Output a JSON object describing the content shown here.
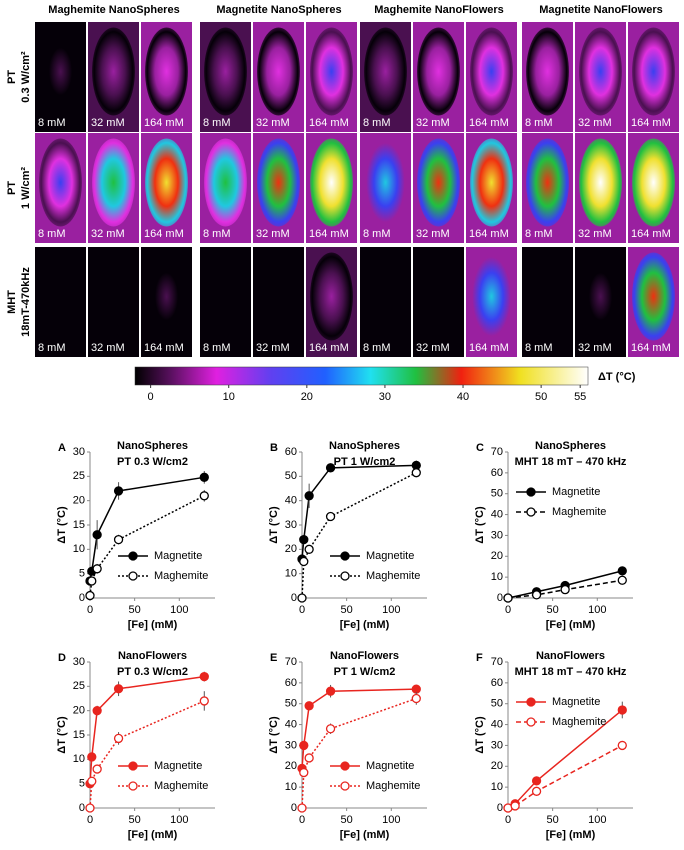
{
  "image_grid": {
    "column_titles": [
      "Maghemite NanoSpheres",
      "Magnetite NanoSpheres",
      "Maghemite NanoFlowers",
      "Magnetite NanoFlowers"
    ],
    "row_titles": [
      [
        "PT",
        "0.3 W/cm²"
      ],
      [
        "PT",
        "1 W/cm²"
      ],
      [
        "MHT",
        "18mT-470kHz"
      ]
    ],
    "concentrations": [
      "8 mM",
      "32 mM",
      "164 mM"
    ]
  },
  "colorbar": {
    "label": "ΔT (°C)",
    "lim": [
      -2,
      56
    ],
    "ticks": [
      0,
      10,
      20,
      30,
      40,
      50,
      55
    ]
  },
  "chart_data": [
    {
      "type": "line",
      "panel": "A",
      "title": "NanoSpheres",
      "subtitle": "PT 0.3 W/cm2",
      "xlabel": "[Fe] (mM)",
      "ylabel": "ΔT (°C)",
      "x": [
        0,
        2,
        8,
        32,
        128
      ],
      "xlim": [
        0,
        140
      ],
      "xticks": [
        0,
        50,
        100
      ],
      "ylim": [
        0,
        30
      ],
      "yticks": [
        0,
        5,
        10,
        15,
        20,
        25,
        30
      ],
      "legend": "lower right",
      "series": [
        {
          "name": "Magnetite",
          "color": "#000000",
          "line_style": "solid",
          "marker": "filled",
          "values": [
            3.5,
            5.5,
            13,
            22,
            24.8
          ],
          "errors": [
            0.5,
            0.5,
            3,
            1.8,
            1.3
          ]
        },
        {
          "name": "Maghemite",
          "color": "#000000",
          "line_style": "dotted",
          "marker": "open",
          "values": [
            0.5,
            3.5,
            6,
            12,
            21
          ],
          "errors": [
            0.3,
            0.5,
            1,
            1,
            1.2
          ]
        }
      ]
    },
    {
      "type": "line",
      "panel": "B",
      "title": "NanoSpheres",
      "subtitle": "PT 1 W/cm2",
      "xlabel": "[Fe] (mM)",
      "ylabel": "ΔT (°C)",
      "x": [
        0,
        2,
        8,
        32,
        128
      ],
      "xlim": [
        0,
        140
      ],
      "xticks": [
        0,
        50,
        100
      ],
      "ylim": [
        0,
        60
      ],
      "yticks": [
        0,
        10,
        20,
        30,
        40,
        50,
        60
      ],
      "legend": "lower right",
      "series": [
        {
          "name": "Magnetite",
          "color": "#000000",
          "line_style": "solid",
          "marker": "filled",
          "values": [
            16,
            24,
            42,
            53.5,
            54.5
          ],
          "errors": [
            1,
            2,
            5,
            1,
            2
          ]
        },
        {
          "name": "Maghemite",
          "color": "#000000",
          "line_style": "dotted",
          "marker": "open",
          "values": [
            0,
            15,
            20,
            33.5,
            51.5
          ],
          "errors": [
            0.5,
            1,
            1.5,
            1,
            1.5
          ]
        }
      ]
    },
    {
      "type": "line",
      "panel": "C",
      "title": "NanoSpheres",
      "subtitle": "MHT 18 mT – 470 kHz",
      "xlabel": "[Fe] (mM)",
      "ylabel": "ΔT (°C)",
      "x": [
        0,
        32,
        64,
        128
      ],
      "xlim": [
        0,
        140
      ],
      "xticks": [
        0,
        50,
        100
      ],
      "ylim": [
        0,
        70
      ],
      "yticks": [
        0,
        10,
        20,
        30,
        40,
        50,
        60,
        70
      ],
      "legend": "upper left",
      "series": [
        {
          "name": "Magnetite",
          "color": "#000000",
          "line_style": "solid",
          "marker": "filled",
          "values": [
            0,
            3,
            6,
            13
          ],
          "errors": [
            0.3,
            0.5,
            0.5,
            0.8
          ]
        },
        {
          "name": "Maghemite",
          "color": "#000000",
          "line_style": "dashed",
          "marker": "open",
          "values": [
            0,
            1.5,
            4,
            8.5
          ],
          "errors": [
            0.3,
            0.5,
            0.5,
            0.8
          ]
        }
      ]
    },
    {
      "type": "line",
      "panel": "D",
      "title": "NanoFlowers",
      "subtitle": "PT 0.3 W/cm2",
      "xlabel": "[Fe] (mM)",
      "ylabel": "ΔT (°C)",
      "x": [
        0,
        2,
        8,
        32,
        128
      ],
      "xlim": [
        0,
        140
      ],
      "xticks": [
        0,
        50,
        100
      ],
      "ylim": [
        0,
        30
      ],
      "yticks": [
        0,
        5,
        10,
        15,
        20,
        25,
        30
      ],
      "legend": "lower right",
      "series": [
        {
          "name": "Magnetite",
          "color": "#e8251f",
          "line_style": "solid",
          "marker": "filled",
          "values": [
            5,
            10.5,
            20,
            24.5,
            27
          ],
          "errors": [
            0.5,
            0.5,
            1,
            1.5,
            1
          ]
        },
        {
          "name": "Maghemite",
          "color": "#e8251f",
          "line_style": "dotted",
          "marker": "open",
          "values": [
            0,
            5.5,
            8,
            14.3,
            22
          ],
          "errors": [
            0.3,
            0.5,
            0.8,
            1.3,
            2
          ]
        }
      ]
    },
    {
      "type": "line",
      "panel": "E",
      "title": "NanoFlowers",
      "subtitle": "PT 1 W/cm2",
      "xlabel": "[Fe] (mM)",
      "ylabel": "ΔT (°C)",
      "x": [
        0,
        2,
        8,
        32,
        128
      ],
      "xlim": [
        0,
        140
      ],
      "xticks": [
        0,
        50,
        100
      ],
      "ylim": [
        0,
        70
      ],
      "yticks": [
        0,
        10,
        20,
        30,
        40,
        50,
        60,
        70
      ],
      "legend": "lower right",
      "series": [
        {
          "name": "Magnetite",
          "color": "#e8251f",
          "line_style": "solid",
          "marker": "filled",
          "values": [
            19,
            30,
            49,
            56,
            57
          ],
          "errors": [
            1,
            1,
            1.5,
            3,
            1.5
          ]
        },
        {
          "name": "Maghemite",
          "color": "#e8251f",
          "line_style": "dotted",
          "marker": "open",
          "values": [
            0,
            17,
            24,
            38,
            52.5
          ],
          "errors": [
            0.5,
            1,
            1.5,
            2.5,
            3
          ]
        }
      ]
    },
    {
      "type": "line",
      "panel": "F",
      "title": "NanoFlowers",
      "subtitle": "MHT 18 mT – 470 kHz",
      "xlabel": "[Fe] (mM)",
      "ylabel": "ΔT (°C)",
      "x": [
        0,
        8,
        32,
        128
      ],
      "xlim": [
        0,
        140
      ],
      "xticks": [
        0,
        50,
        100
      ],
      "ylim": [
        0,
        70
      ],
      "yticks": [
        0,
        10,
        20,
        30,
        40,
        50,
        60,
        70
      ],
      "legend": "upper left",
      "series": [
        {
          "name": "Magnetite",
          "color": "#e8251f",
          "line_style": "solid",
          "marker": "filled",
          "values": [
            0,
            2,
            13,
            47
          ],
          "errors": [
            0.3,
            0.5,
            1,
            4
          ]
        },
        {
          "name": "Maghemite",
          "color": "#e8251f",
          "line_style": "dashed",
          "marker": "open",
          "values": [
            0,
            1,
            8,
            30
          ],
          "errors": [
            0.3,
            0.5,
            0.8,
            1
          ]
        }
      ]
    }
  ]
}
